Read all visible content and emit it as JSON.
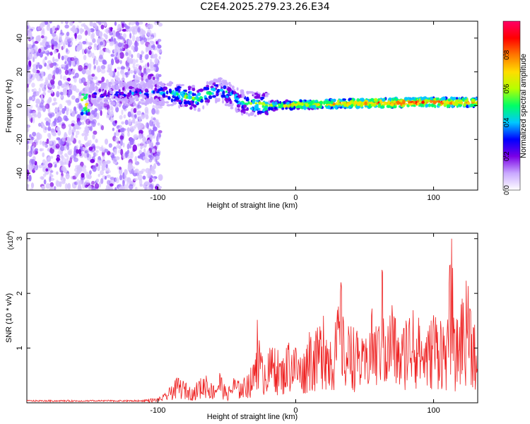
{
  "title": "C2E4.2025.279.23.26.E34",
  "chart_data": [
    {
      "type": "heatmap",
      "xlabel": "Height of straight line (km)",
      "ylabel": "Frequency (Hz)",
      "xlim": [
        -195,
        132
      ],
      "ylim": [
        -50,
        50
      ],
      "xticks": [
        -100,
        0,
        100
      ],
      "yticks": [
        -40,
        -20,
        0,
        20,
        40
      ],
      "colorbar": {
        "label": "Normalized spectral amplitude",
        "range": [
          0.0,
          1.0
        ],
        "ticks": [
          "0.0",
          "0.2",
          "0.4",
          "0.6",
          "0.8"
        ],
        "colormap": [
          "#ffffff",
          "#c9a8ff",
          "#7a00e6",
          "#0000ff",
          "#00c8ff",
          "#00ff66",
          "#b5ff00",
          "#ffdd00",
          "#ff7700",
          "#ff0000",
          "#ff0066"
        ]
      },
      "description_points": [
        {
          "x": -150,
          "y": 6,
          "v": 0.25
        },
        {
          "x": -110,
          "y": 8,
          "v": 0.3
        },
        {
          "x": -90,
          "y": 7,
          "v": 0.45
        },
        {
          "x": -70,
          "y": 4,
          "v": 0.5
        },
        {
          "x": -55,
          "y": 10,
          "v": 0.4
        },
        {
          "x": -40,
          "y": 2,
          "v": 0.45
        },
        {
          "x": -20,
          "y": 0,
          "v": 0.6
        },
        {
          "x": 0,
          "y": 0.5,
          "v": 0.7
        },
        {
          "x": 50,
          "y": 1.5,
          "v": 0.8
        },
        {
          "x": 100,
          "y": 2,
          "v": 0.85
        },
        {
          "x": 130,
          "y": 2,
          "v": 0.75
        }
      ]
    },
    {
      "type": "line",
      "xlabel": "Height of straight line (km)",
      "ylabel": "SNR (10 * v/v)",
      "scale_label": "(x10",
      "scale_exp": "4",
      "scale_close": ")",
      "xlim": [
        -195,
        132
      ],
      "ylim": [
        0,
        3.1
      ],
      "xticks": [
        -100,
        0,
        100
      ],
      "yticks": [
        1,
        2,
        3
      ],
      "color": "#ee2222",
      "x": [
        -195,
        -150,
        -120,
        -100,
        -95,
        -90,
        -85,
        -80,
        -75,
        -70,
        -65,
        -60,
        -55,
        -50,
        -45,
        -40,
        -35,
        -30,
        -28,
        -25,
        -20,
        -15,
        -10,
        -5,
        0,
        5,
        10,
        15,
        20,
        25,
        30,
        33,
        35,
        40,
        45,
        50,
        55,
        60,
        63,
        65,
        70,
        75,
        80,
        85,
        90,
        95,
        100,
        105,
        110,
        113,
        115,
        120,
        125,
        130,
        132
      ],
      "values": [
        0.02,
        0.03,
        0.05,
        0.08,
        0.15,
        0.3,
        0.45,
        0.35,
        0.25,
        0.4,
        0.5,
        0.3,
        0.55,
        0.2,
        0.45,
        0.35,
        0.5,
        0.7,
        1.55,
        0.8,
        0.9,
        1.0,
        0.75,
        1.1,
        1.0,
        0.8,
        1.3,
        1.2,
        1.6,
        1.1,
        1.5,
        2.2,
        1.2,
        1.4,
        1.2,
        1.0,
        1.6,
        1.3,
        2.4,
        1.2,
        1.8,
        1.1,
        1.5,
        1.7,
        1.4,
        1.2,
        1.6,
        1.5,
        1.3,
        3.1,
        1.2,
        1.8,
        2.15,
        1.4,
        0.6
      ]
    }
  ]
}
